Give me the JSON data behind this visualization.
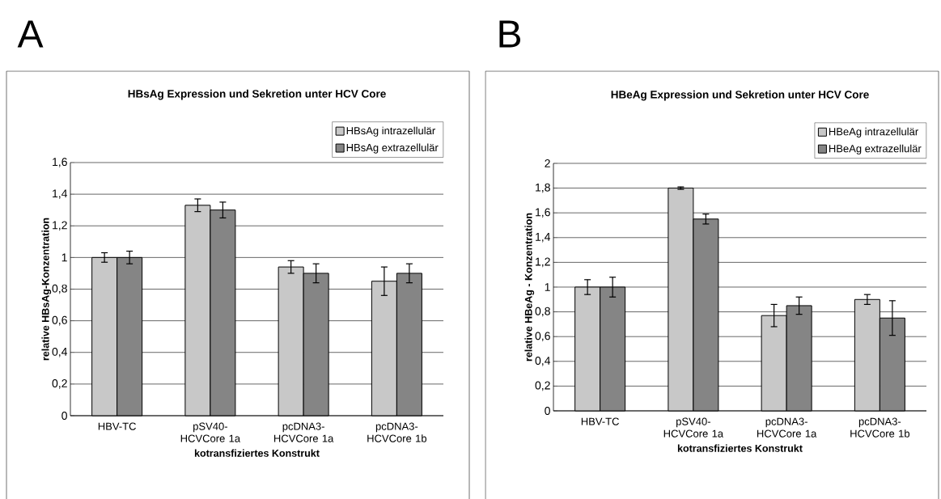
{
  "chart_data": [
    {
      "type": "bar",
      "title": "HBsAg Expression und Sekretion unter HCV Core",
      "xlabel": "kotransfiziertes Konstrukt",
      "ylabel": "relative HBsAg-Konzentration",
      "annotations": [
        "A"
      ],
      "categories": [
        "HBV-TC",
        "pSV40- HCVCore 1a",
        "pcDNA3- HCVCore 1a",
        "pcDNA3- HCVCore 1b"
      ],
      "series": [
        {
          "name": "HBsAg intrazellulär",
          "color": "#c8c8c8",
          "values": [
            1.0,
            1.33,
            0.94,
            0.85
          ],
          "errors": [
            0.03,
            0.04,
            0.04,
            0.09
          ]
        },
        {
          "name": "HBsAg extrazellulär",
          "color": "#858585",
          "values": [
            1.0,
            1.3,
            0.9,
            0.9
          ],
          "errors": [
            0.04,
            0.05,
            0.06,
            0.06
          ]
        }
      ],
      "ylim": [
        0,
        1.6
      ],
      "yticks": [
        0,
        {
          "value": 0.2,
          "label": "0,2"
        },
        {
          "value": 0.4,
          "label": "0,4"
        },
        {
          "value": 0.6,
          "label": "0,6"
        },
        {
          "value": 0.8,
          "label": "0,8"
        },
        1,
        {
          "value": 1.2,
          "label": "1,2"
        },
        {
          "value": 1.4,
          "label": "1,4"
        },
        {
          "value": 1.6,
          "label": "1,6"
        }
      ],
      "grid": "y",
      "legend": "top right"
    },
    {
      "type": "bar",
      "title": "HBeAg Expression und Sekretion unter HCV Core",
      "xlabel": "kotransfiziertes Konstrukt",
      "ylabel": "relative HBeAg - Konzentration",
      "annotations": [
        "B"
      ],
      "categories": [
        "HBV-TC",
        "pSV40- HCVCore 1a",
        "pcDNA3- HCVCore 1a",
        "pcDNA3- HCVCore 1b"
      ],
      "series": [
        {
          "name": "HBeAg intrazellulär",
          "color": "#c8c8c8",
          "values": [
            1.0,
            1.8,
            0.77,
            0.9
          ],
          "errors": [
            0.06,
            0.01,
            0.09,
            0.04
          ]
        },
        {
          "name": "HBeAg extrazellulär",
          "color": "#858585",
          "values": [
            1.0,
            1.55,
            0.85,
            0.75
          ],
          "errors": [
            0.08,
            0.04,
            0.07,
            0.14
          ]
        }
      ],
      "ylim": [
        0,
        2
      ],
      "yticks": [
        0,
        {
          "value": 0.2,
          "label": "0,2"
        },
        {
          "value": 0.4,
          "label": "0,4"
        },
        {
          "value": 0.6,
          "label": "0,6"
        },
        {
          "value": 0.8,
          "label": "0,8"
        },
        1,
        {
          "value": 1.2,
          "label": "1,2"
        },
        {
          "value": 1.4,
          "label": "1,4"
        },
        {
          "value": 1.6,
          "label": "1,6"
        },
        {
          "value": 1.8,
          "label": "1,8"
        },
        2
      ],
      "grid": "y",
      "legend": "top right"
    }
  ]
}
